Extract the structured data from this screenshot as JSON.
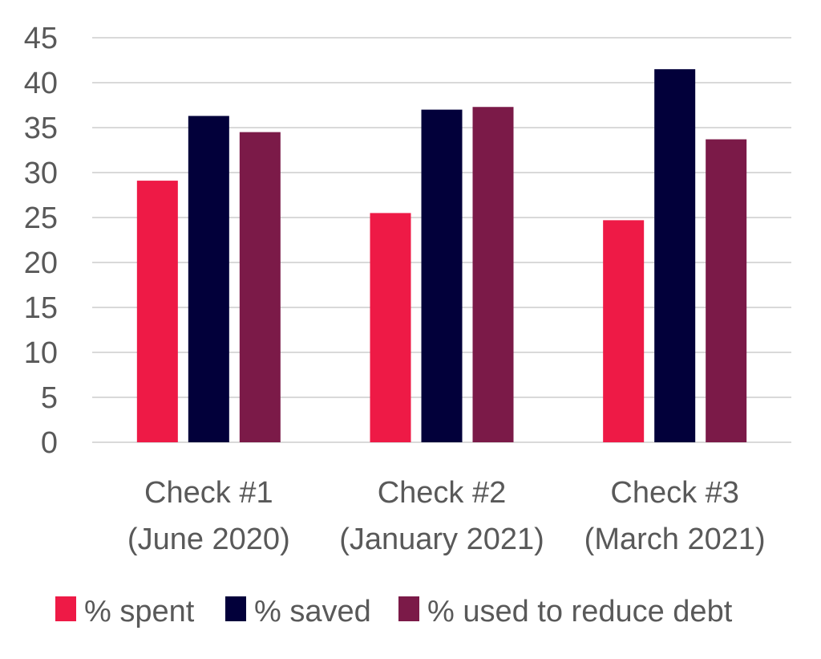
{
  "chart_data": {
    "type": "bar",
    "categories": [
      [
        "Check #1",
        "(June 2020)"
      ],
      [
        "Check #2",
        "(January 2021)"
      ],
      [
        "Check #3",
        "(March 2021)"
      ]
    ],
    "series": [
      {
        "name": "% spent",
        "values": [
          29.1,
          25.5,
          24.7
        ],
        "color": "#EE1A46"
      },
      {
        "name": "% saved",
        "values": [
          36.3,
          37.0,
          41.5
        ],
        "color": "#02003A"
      },
      {
        "name": "% used to reduce debt",
        "values": [
          34.5,
          37.3,
          33.7
        ],
        "color": "#7B1A48"
      }
    ],
    "yticks": [
      "0",
      "5",
      "10",
      "15",
      "20",
      "25",
      "30",
      "35",
      "40",
      "45"
    ],
    "ylim": [
      0,
      45
    ],
    "grid": true,
    "legend_position": "bottom"
  }
}
